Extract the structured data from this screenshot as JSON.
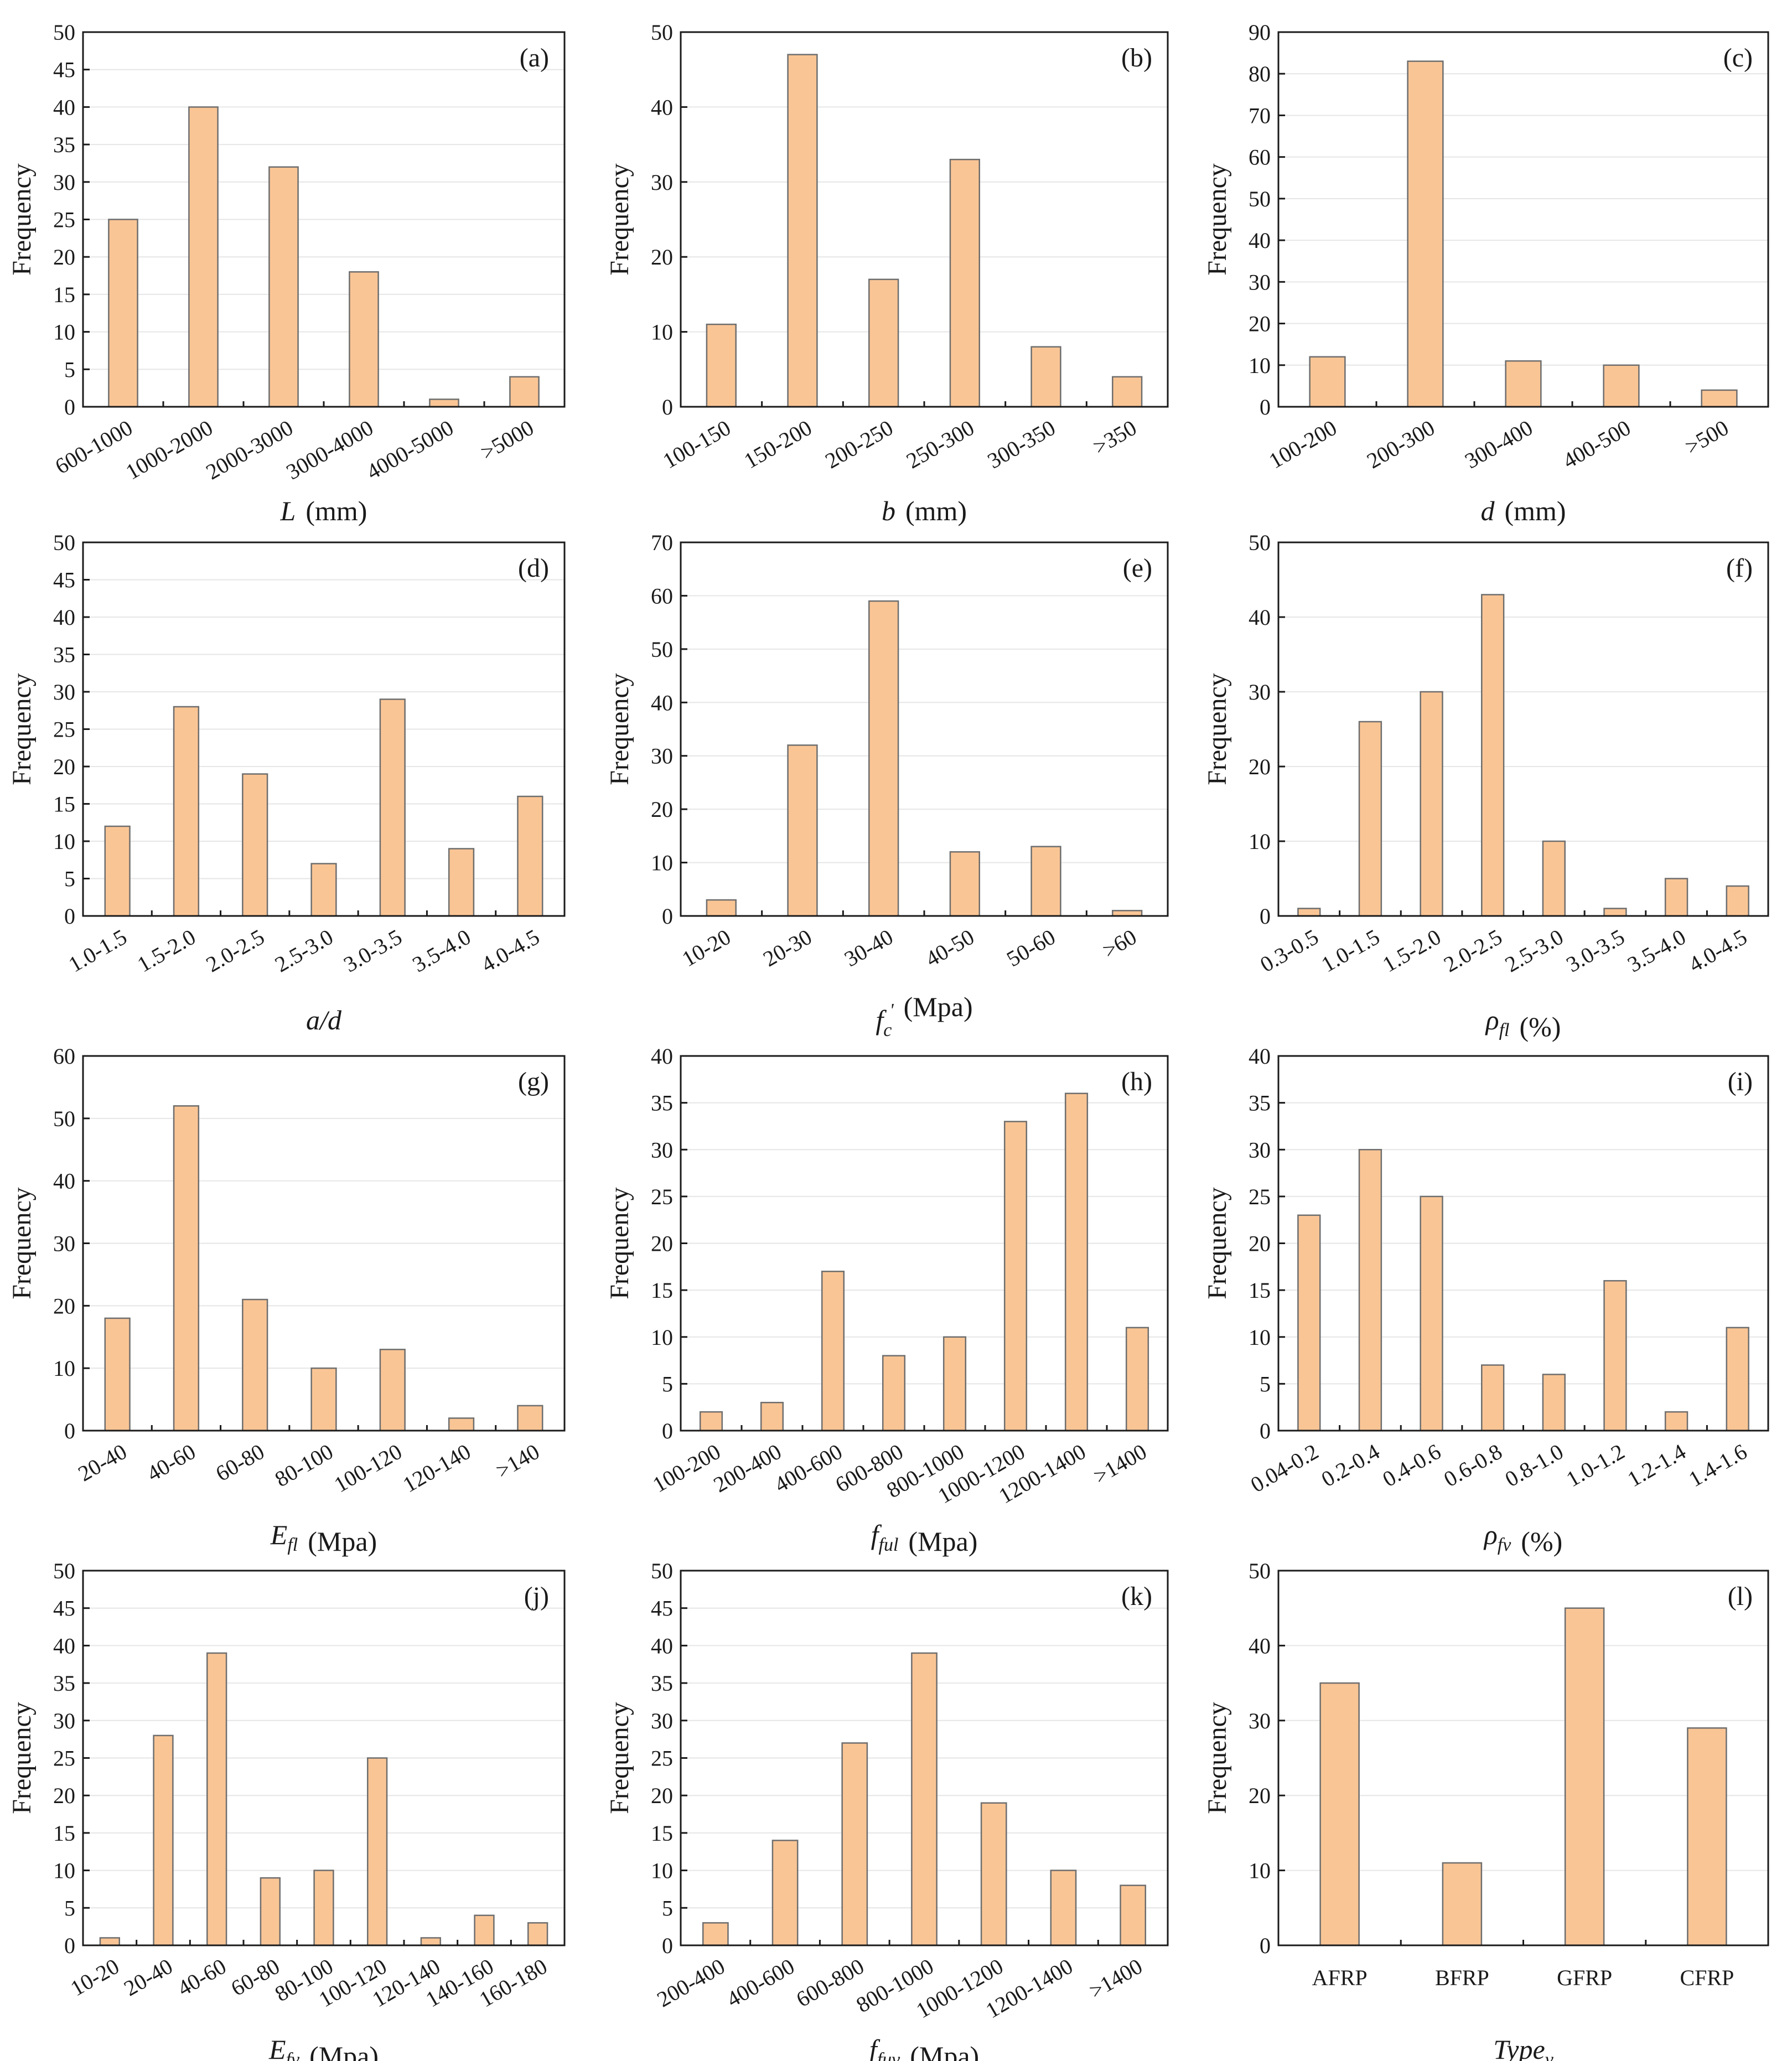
{
  "figure": {
    "bar_color": "#FAC595",
    "bar_edge": "#6E6E6E",
    "frequency_label": "Frequency"
  },
  "chart_data": [
    {
      "id": "a",
      "type": "bar",
      "panel": "(a)",
      "ylabel": "Frequency",
      "xlabel_sym": "L",
      "xlabel_sub": "",
      "xlabel_unit": "(mm)",
      "xlabel_italic_all": false,
      "ylim": [
        0,
        50
      ],
      "yticks": [
        0,
        5,
        10,
        15,
        20,
        25,
        30,
        35,
        40,
        45,
        50
      ],
      "categories": [
        "600-1000",
        "1000-2000",
        "2000-3000",
        "3000-4000",
        "4000-5000",
        ">5000"
      ],
      "values": [
        25,
        40,
        32,
        18,
        1,
        4
      ]
    },
    {
      "id": "b",
      "type": "bar",
      "panel": "(b)",
      "ylabel": "Frequency",
      "xlabel_sym": "b",
      "xlabel_sub": "",
      "xlabel_unit": "(mm)",
      "xlabel_italic_all": false,
      "ylim": [
        0,
        50
      ],
      "yticks": [
        0,
        10,
        20,
        30,
        40,
        50
      ],
      "categories": [
        "100-150",
        "150-200",
        "200-250",
        "250-300",
        "300-350",
        ">350"
      ],
      "values": [
        11,
        47,
        17,
        33,
        8,
        4
      ]
    },
    {
      "id": "c",
      "type": "bar",
      "panel": "(c)",
      "ylabel": "Frequency",
      "xlabel_sym": "d",
      "xlabel_sub": "",
      "xlabel_unit": "(mm)",
      "xlabel_italic_all": false,
      "ylim": [
        0,
        90
      ],
      "yticks": [
        0,
        10,
        20,
        30,
        40,
        50,
        60,
        70,
        80,
        90
      ],
      "categories": [
        "100-200",
        "200-300",
        "300-400",
        "400-500",
        ">500"
      ],
      "values": [
        12,
        83,
        11,
        10,
        4
      ]
    },
    {
      "id": "d",
      "type": "bar",
      "panel": "(d)",
      "ylabel": "Frequency",
      "xlabel_sym": "a/d",
      "xlabel_sub": "",
      "xlabel_unit": "",
      "xlabel_italic_all": false,
      "ylim": [
        0,
        50
      ],
      "yticks": [
        0,
        5,
        10,
        15,
        20,
        25,
        30,
        35,
        40,
        45,
        50
      ],
      "categories": [
        "1.0-1.5",
        "1.5-2.0",
        "2.0-2.5",
        "2.5-3.0",
        "3.0-3.5",
        "3.5-4.0",
        "4.0-4.5"
      ],
      "values": [
        12,
        28,
        19,
        7,
        29,
        9,
        16
      ]
    },
    {
      "id": "e",
      "type": "bar",
      "panel": "(e)",
      "ylabel": "Frequency",
      "xlabel_sym": "f",
      "xlabel_sub": "c",
      "xlabel_sup": "'",
      "xlabel_unit": "(Mpa)",
      "xlabel_italic_all": false,
      "ylim": [
        0,
        70
      ],
      "yticks": [
        0,
        10,
        20,
        30,
        40,
        50,
        60,
        70
      ],
      "categories": [
        "10-20",
        "20-30",
        "30-40",
        "40-50",
        "50-60",
        ">60"
      ],
      "values": [
        3,
        32,
        59,
        12,
        13,
        1
      ]
    },
    {
      "id": "f",
      "type": "bar",
      "panel": "(f)",
      "ylabel": "Frequency",
      "xlabel_sym": "ρ",
      "xlabel_sub": "fl",
      "xlabel_unit": "(%)",
      "xlabel_italic_all": false,
      "ylim": [
        0,
        50
      ],
      "yticks": [
        0,
        10,
        20,
        30,
        40,
        50
      ],
      "categories": [
        "0.3-0.5",
        "1.0-1.5",
        "1.5-2.0",
        "2.0-2.5",
        "2.5-3.0",
        "3.0-3.5",
        "3.5-4.0",
        "4.0-4.5"
      ],
      "values": [
        1,
        26,
        30,
        43,
        10,
        1,
        5,
        4
      ]
    },
    {
      "id": "g",
      "type": "bar",
      "panel": "(g)",
      "ylabel": "Frequency",
      "xlabel_sym": "E",
      "xlabel_sub": "fl",
      "xlabel_unit": "(Mpa)",
      "xlabel_italic_all": false,
      "ylim": [
        0,
        60
      ],
      "yticks": [
        0,
        10,
        20,
        30,
        40,
        50,
        60
      ],
      "categories": [
        "20-40",
        "40-60",
        "60-80",
        "80-100",
        "100-120",
        "120-140",
        ">140"
      ],
      "values": [
        18,
        52,
        21,
        10,
        13,
        2,
        4
      ]
    },
    {
      "id": "h",
      "type": "bar",
      "panel": "(h)",
      "ylabel": "Frequency",
      "xlabel_sym": "f",
      "xlabel_sub": "ful",
      "xlabel_unit": "(Mpa)",
      "xlabel_italic_all": false,
      "ylim": [
        0,
        40
      ],
      "yticks": [
        0,
        5,
        10,
        15,
        20,
        25,
        30,
        35,
        40
      ],
      "categories": [
        "100-200",
        "200-400",
        "400-600",
        "600-800",
        "800-1000",
        "1000-1200",
        "1200-1400",
        ">1400"
      ],
      "values": [
        2,
        3,
        17,
        8,
        10,
        33,
        36,
        11
      ]
    },
    {
      "id": "i",
      "type": "bar",
      "panel": "(i)",
      "ylabel": "Frequency",
      "xlabel_sym": "ρ",
      "xlabel_sub": "fv",
      "xlabel_unit": "(%)",
      "xlabel_italic_all": false,
      "ylim": [
        0,
        40
      ],
      "yticks": [
        0,
        5,
        10,
        15,
        20,
        25,
        30,
        35,
        40
      ],
      "categories": [
        "0.04-0.2",
        "0.2-0.4",
        "0.4-0.6",
        "0.6-0.8",
        "0.8-1.0",
        "1.0-1.2",
        "1.2-1.4",
        "1.4-1.6"
      ],
      "values": [
        23,
        30,
        25,
        7,
        6,
        16,
        2,
        11
      ]
    },
    {
      "id": "j",
      "type": "bar",
      "panel": "(j)",
      "ylabel": "Frequency",
      "xlabel_sym": "E",
      "xlabel_sub": "fv",
      "xlabel_unit": "(Mpa)",
      "xlabel_italic_all": false,
      "ylim": [
        0,
        50
      ],
      "yticks": [
        0,
        5,
        10,
        15,
        20,
        25,
        30,
        35,
        40,
        45,
        50
      ],
      "categories": [
        "10-20",
        "20-40",
        "40-60",
        "60-80",
        "80-100",
        "100-120",
        "120-140",
        "140-160",
        "160-180"
      ],
      "values": [
        1,
        28,
        39,
        9,
        10,
        25,
        1,
        4,
        3
      ]
    },
    {
      "id": "k",
      "type": "bar",
      "panel": "(k)",
      "ylabel": "Frequency",
      "xlabel_sym": "f",
      "xlabel_sub": "fuv",
      "xlabel_unit": "(Mpa)",
      "xlabel_italic_all": false,
      "ylim": [
        0,
        50
      ],
      "yticks": [
        0,
        5,
        10,
        15,
        20,
        25,
        30,
        35,
        40,
        45,
        50
      ],
      "categories": [
        "200-400",
        "400-600",
        "600-800",
        "800-1000",
        "1000-1200",
        "1200-1400",
        ">1400"
      ],
      "values": [
        3,
        14,
        27,
        39,
        19,
        10,
        8
      ]
    },
    {
      "id": "l",
      "type": "bar",
      "panel": "(l)",
      "ylabel": "Frequency",
      "xlabel_sym": "Type",
      "xlabel_sub": "v",
      "xlabel_unit": "",
      "xlabel_italic_all": true,
      "ylim": [
        0,
        50
      ],
      "yticks": [
        0,
        10,
        20,
        30,
        40,
        50
      ],
      "categories": [
        "AFRP",
        "BFRP",
        "GFRP",
        "CFRP"
      ],
      "values": [
        35,
        11,
        45,
        29
      ],
      "rotate_ticks": false
    }
  ]
}
